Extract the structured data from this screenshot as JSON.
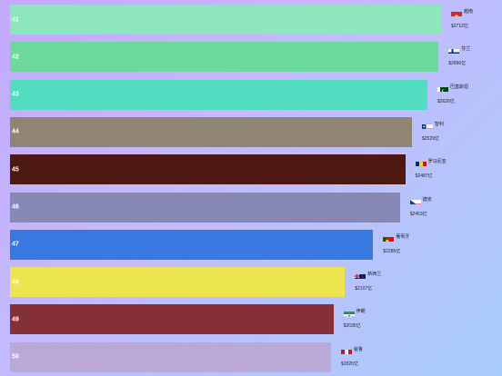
{
  "chart_data": {
    "type": "bar",
    "orientation": "horizontal",
    "value_suffix": "亿",
    "value_prefix": "$",
    "items": [
      {
        "rank": "41",
        "country": "越南",
        "value": 2712,
        "value_label": "$2712亿",
        "color": "#8ee6bc",
        "flag": "vietnam-flag-icon"
      },
      {
        "rank": "42",
        "country": "芬兰",
        "value": 2696,
        "value_label": "$2696亿",
        "color": "#6cd89c",
        "flag": "finland-flag-icon"
      },
      {
        "rank": "43",
        "country": "巴基斯坦",
        "value": 2626,
        "value_label": "$2626亿",
        "color": "#52dcc0",
        "flag": "pakistan-flag-icon"
      },
      {
        "rank": "44",
        "country": "智利",
        "value": 2529,
        "value_label": "$2529亿",
        "color": "#908474",
        "flag": "chile-flag-icon"
      },
      {
        "rank": "45",
        "country": "罗马尼亚",
        "value": 2487,
        "value_label": "$2487亿",
        "color": "#4e1912",
        "flag": "romania-flag-icon"
      },
      {
        "rank": "46",
        "country": "捷克",
        "value": 2453,
        "value_label": "$2453亿",
        "color": "#8888b6",
        "flag": "czech-flag-icon"
      },
      {
        "rank": "47",
        "country": "葡萄牙",
        "value": 2285,
        "value_label": "$2285亿",
        "color": "#3878e0",
        "flag": "portugal-flag-icon"
      },
      {
        "rank": "48",
        "country": "新西兰",
        "value": 2107,
        "value_label": "$2107亿",
        "color": "#ece54e",
        "flag": "new-zealand-flag-icon"
      },
      {
        "rank": "49",
        "country": "伊朗",
        "value": 2035,
        "value_label": "$2035亿",
        "color": "#853038",
        "flag": "iran-flag-icon"
      },
      {
        "rank": "50",
        "country": "秘鲁",
        "value": 2020,
        "value_label": "$2020亿",
        "color": "#baa8d6",
        "flag": "peru-flag-icon"
      }
    ]
  }
}
